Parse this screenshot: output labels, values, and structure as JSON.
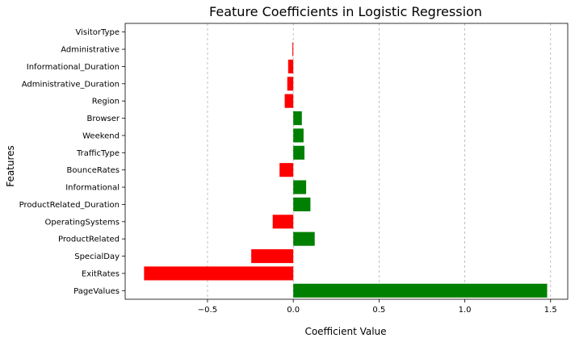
{
  "chart_data": {
    "type": "bar",
    "orientation": "horizontal",
    "title": "Feature Coefficients in Logistic Regression",
    "xlabel": "Coefficient Value",
    "ylabel": "Features",
    "xlim": [
      -0.98,
      1.6
    ],
    "xticks": [
      -0.5,
      0.0,
      0.5,
      1.0,
      1.5
    ],
    "xtick_labels": [
      "−0.5",
      "0.0",
      "0.5",
      "1.0",
      "1.5"
    ],
    "grid": "x-dashed",
    "categories": [
      "PageValues",
      "ExitRates",
      "SpecialDay",
      "ProductRelated",
      "OperatingSystems",
      "ProductRelated_Duration",
      "Informational",
      "BounceRates",
      "TrafficType",
      "Weekend",
      "Browser",
      "Region",
      "Administrative_Duration",
      "Informational_Duration",
      "Administrative",
      "VisitorType"
    ],
    "values": [
      1.48,
      -0.87,
      -0.245,
      0.125,
      -0.12,
      0.1,
      0.075,
      -0.08,
      0.065,
      0.06,
      0.05,
      -0.05,
      -0.035,
      -0.03,
      -0.005,
      0.0
    ],
    "colors": {
      "positive": "#008000",
      "negative": "#ff0000"
    }
  }
}
